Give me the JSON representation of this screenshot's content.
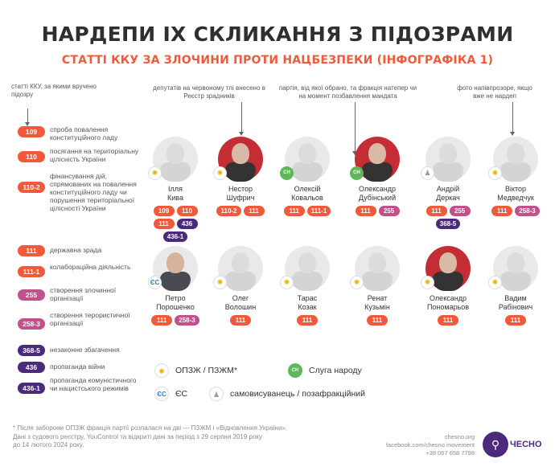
{
  "header": {
    "title": "НАРДЕПИ IX СКЛИКАННЯ З ПІДОЗРАМИ",
    "subtitle": "СТАТТІ ККУ ЗА ЗЛОЧИНИ ПРОТИ НАЦБЕЗПЕКИ (ІНФОГРАФІКА 1)"
  },
  "colors": {
    "accent_orange": "#f05a3a",
    "pink": "#c2508a",
    "purple": "#4b2a7b",
    "green": "#5db85a"
  },
  "legend": {
    "heading": "статті ККУ, за якими вручено підозру",
    "articles": [
      {
        "code": "109",
        "text": "спроба повалення конституційного ладу",
        "color": "#f05a3a"
      },
      {
        "code": "110",
        "text": "посягання на територіальну цілісність України",
        "color": "#f05a3a"
      },
      {
        "code": "110-2",
        "text": "фінансування дій, спрямованих на повалення конституційного ладу чи порушення територіальної цілісності України",
        "color": "#f05a3a"
      },
      {
        "code": "111",
        "text": "державна зрада",
        "color": "#f05a3a"
      },
      {
        "code": "111-1",
        "text": "колабораційна діяльність",
        "color": "#f05a3a"
      },
      {
        "code": "255",
        "text": "створення злочинної організації",
        "color": "#c2508a"
      },
      {
        "code": "258-3",
        "text": "створення терористичної організації",
        "color": "#c2508a"
      },
      {
        "code": "368-5",
        "text": "незаконне збагачення",
        "color": "#4b2a7b"
      },
      {
        "code": "436",
        "text": "пропаганда війни",
        "color": "#4b2a7b"
      },
      {
        "code": "436-1",
        "text": "пропаганда комуністичного чи нацистського режимів",
        "color": "#4b2a7b"
      }
    ]
  },
  "annotations": {
    "registry": "депутатів на червоному тлі внесено в Реєстр зрадників",
    "party": "партія, від якої обрано, та фракція натепер чи на момент позбавлення мандата",
    "photo": "фото напівпрозоре, якщо вже не нардеп"
  },
  "people_row1": [
    {
      "first": "Ілля",
      "last": "Кива",
      "party": "opzh",
      "icon": "sun-icon",
      "style": "faded",
      "articles": [
        {
          "code": "109",
          "color": "#f05a3a"
        },
        {
          "code": "110",
          "color": "#f05a3a"
        },
        {
          "code": "111",
          "color": "#f05a3a"
        },
        {
          "code": "436",
          "color": "#4b2a7b"
        },
        {
          "code": "436-1",
          "color": "#4b2a7b"
        }
      ]
    },
    {
      "first": "Нестор",
      "last": "Шуфрич",
      "party": "opzh",
      "icon": "sun-icon",
      "style": "dark",
      "articles": [
        {
          "code": "110-2",
          "color": "#f05a3a"
        },
        {
          "code": "111",
          "color": "#f05a3a"
        }
      ]
    },
    {
      "first": "Олексій",
      "last": "Ковальов",
      "party": "sluha",
      "icon": "sluha-icon",
      "style": "faded",
      "articles": [
        {
          "code": "111",
          "color": "#f05a3a"
        },
        {
          "code": "111-1",
          "color": "#f05a3a"
        }
      ]
    },
    {
      "first": "Олександр",
      "last": "Дубінський",
      "party": "sluha-self",
      "icon": "sluha-icon",
      "style": "dark",
      "articles": [
        {
          "code": "111",
          "color": "#f05a3a"
        },
        {
          "code": "255",
          "color": "#c2508a"
        }
      ]
    },
    {
      "first": "Андрій",
      "last": "Деркач",
      "party": "self",
      "icon": "person-icon",
      "style": "faded",
      "articles": [
        {
          "code": "111",
          "color": "#f05a3a"
        },
        {
          "code": "255",
          "color": "#c2508a"
        },
        {
          "code": "368-5",
          "color": "#4b2a7b"
        }
      ]
    },
    {
      "first": "Віктор",
      "last": "Медведчук",
      "party": "opzh",
      "icon": "sun-icon",
      "style": "faded",
      "articles": [
        {
          "code": "111",
          "color": "#f05a3a"
        },
        {
          "code": "258-3",
          "color": "#c2508a"
        }
      ]
    }
  ],
  "people_row2": [
    {
      "first": "Петро",
      "last": "Порошенко",
      "party": "eu",
      "icon": "eu-icon",
      "style": "color",
      "articles": [
        {
          "code": "111",
          "color": "#f05a3a"
        },
        {
          "code": "258-3",
          "color": "#c2508a"
        }
      ]
    },
    {
      "first": "Олег",
      "last": "Волошин",
      "party": "opzh",
      "icon": "sun-icon",
      "style": "faded",
      "articles": [
        {
          "code": "111",
          "color": "#f05a3a"
        }
      ]
    },
    {
      "first": "Тарас",
      "last": "Козак",
      "party": "opzh",
      "icon": "sun-icon",
      "style": "faded",
      "articles": [
        {
          "code": "111",
          "color": "#f05a3a"
        }
      ]
    },
    {
      "first": "Ренат",
      "last": "Кузьмін",
      "party": "opzh",
      "icon": "sun-icon",
      "style": "faded",
      "articles": [
        {
          "code": "111",
          "color": "#f05a3a"
        }
      ]
    },
    {
      "first": "Олександр",
      "last": "Пономарьов",
      "party": "opzh",
      "icon": "sun-icon",
      "style": "dark",
      "articles": [
        {
          "code": "111",
          "color": "#f05a3a"
        }
      ]
    },
    {
      "first": "Вадим",
      "last": "Рабінович",
      "party": "opzh",
      "icon": "sun-icon",
      "style": "faded",
      "articles": [
        {
          "code": "111",
          "color": "#f05a3a"
        }
      ]
    }
  ],
  "parties": {
    "opzh": "ОПЗЖ / ПЗЖМ*",
    "sluha": "Слуга народу",
    "eu": "ЄС",
    "self": "самовисуванець / позафракційний",
    "sluha_abbr": "СН",
    "eu_abbr": "ЄС"
  },
  "footer": {
    "note_line1": "* Після заборони ОПЗЖ фракція партії розпалася на дві — ПЗЖМ і «Відновлення України».",
    "note_line2": "Дані з судового реєстру, YouControl та відкриті дані за період з 29 серпня 2019 року",
    "note_line3": "до 14 лютого 2024 року.",
    "site": "chesno.org",
    "facebook": "facebook.com/chesno.movement",
    "phone": "+38 067 658 7798",
    "logo": "ЧЕСНО"
  }
}
